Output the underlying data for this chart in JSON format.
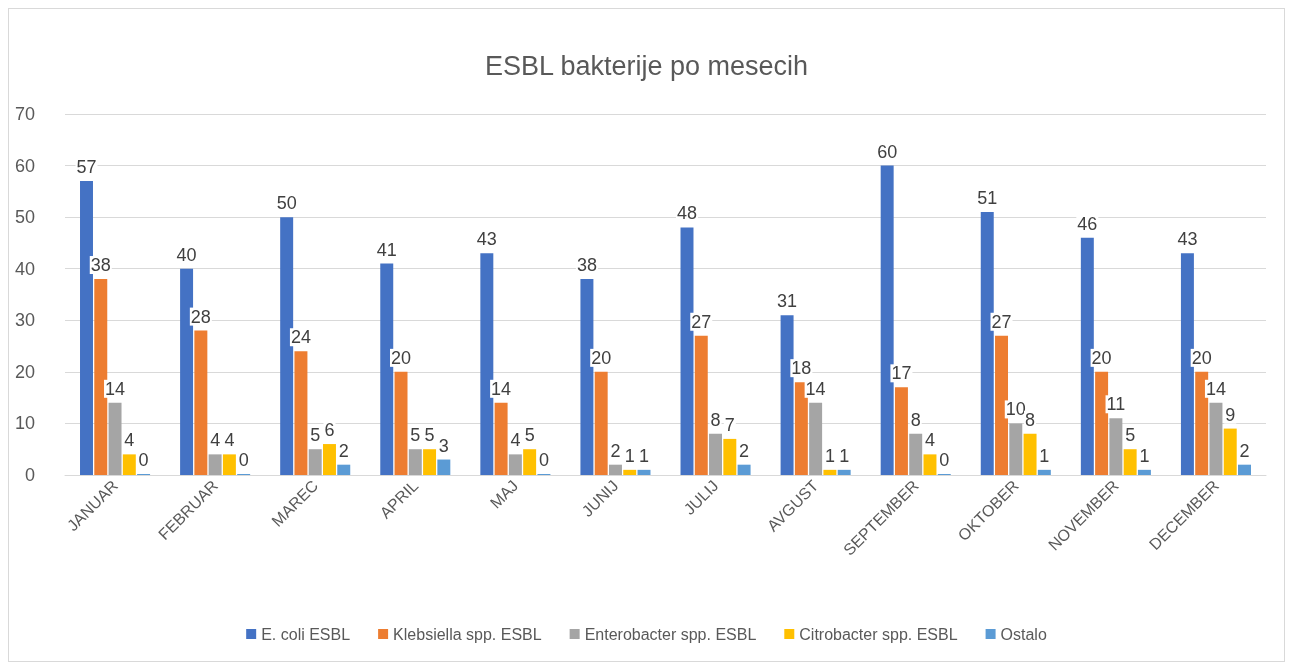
{
  "chart_data": {
    "type": "bar",
    "title": "ESBL bakterije po mesecih",
    "categories": [
      "JANUAR",
      "FEBRUAR",
      "MAREC",
      "APRIL",
      "MAJ",
      "JUNIJ",
      "JULIJ",
      "AVGUST",
      "SEPTEMBER",
      "OKTOBER",
      "NOVEMBER",
      "DECEMBER"
    ],
    "series": [
      {
        "name": "E. coli ESBL",
        "color": "#4472c4",
        "values": [
          57,
          40,
          50,
          41,
          43,
          38,
          48,
          31,
          60,
          51,
          46,
          43
        ]
      },
      {
        "name": "Klebsiella spp. ESBL",
        "color": "#ed7d31",
        "values": [
          38,
          28,
          24,
          20,
          14,
          20,
          27,
          18,
          17,
          27,
          20,
          20
        ]
      },
      {
        "name": "Enterobacter spp. ESBL",
        "color": "#a5a5a5",
        "values": [
          14,
          4,
          5,
          5,
          4,
          2,
          8,
          14,
          8,
          10,
          11,
          14
        ]
      },
      {
        "name": "Citrobacter spp. ESBL",
        "color": "#ffc000",
        "values": [
          4,
          4,
          6,
          5,
          5,
          1,
          7,
          1,
          4,
          8,
          5,
          9
        ]
      },
      {
        "name": "Ostalo",
        "color": "#5b9bd5",
        "values": [
          0,
          0,
          2,
          3,
          0,
          1,
          2,
          1,
          0,
          1,
          1,
          2
        ]
      }
    ],
    "ylim": [
      0,
      70
    ],
    "yticks": [
      0,
      10,
      20,
      30,
      40,
      50,
      60,
      70
    ],
    "grid": "y",
    "legend": "bottom",
    "data_labels": true
  }
}
